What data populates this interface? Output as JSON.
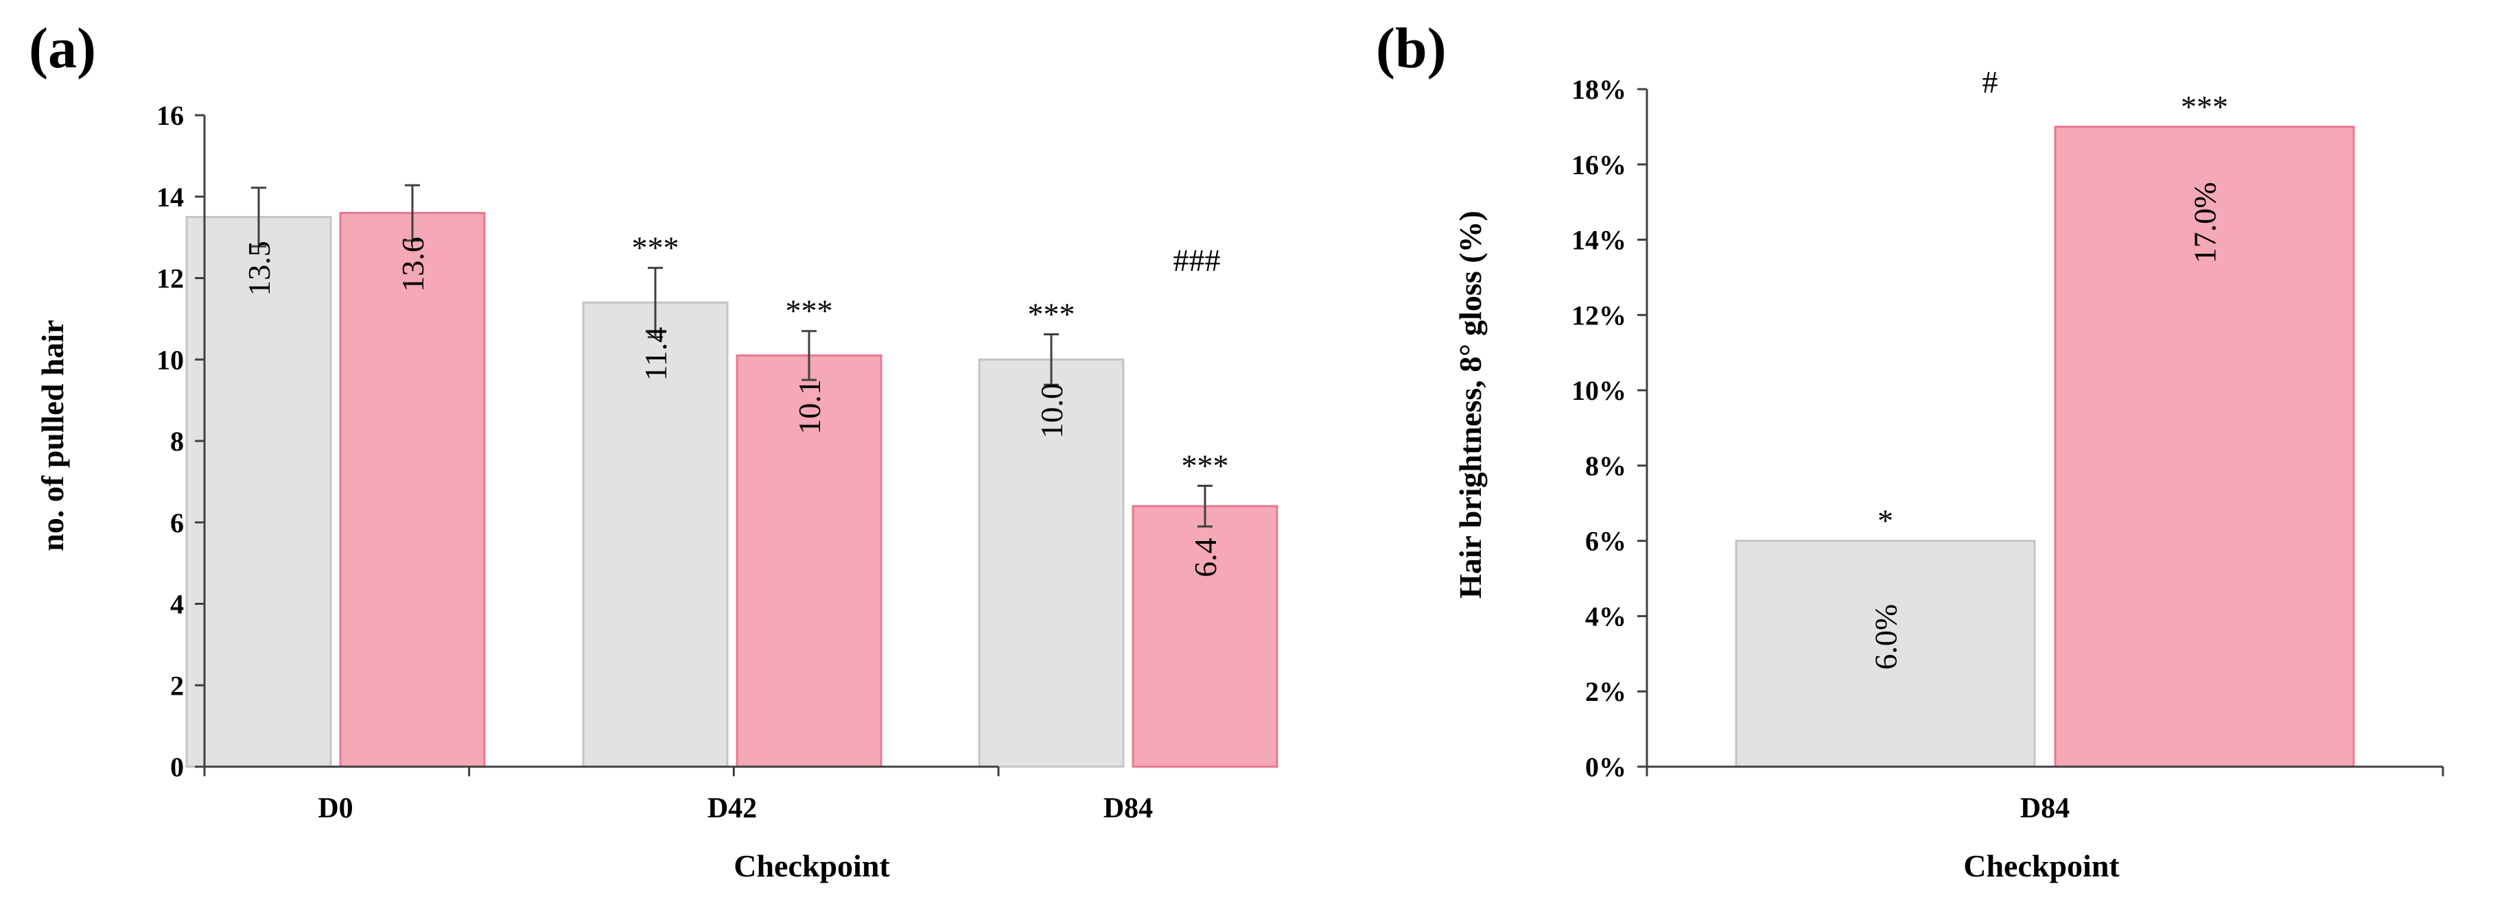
{
  "panels": [
    {
      "letter": "(a)"
    },
    {
      "letter": "(b)"
    }
  ],
  "colors": {
    "gray_fill": "#e2e2e2",
    "gray_stroke": "#c4c4c4",
    "pink_fill": "#f5a8b5",
    "pink_stroke": "#e87890",
    "axis": "#404040",
    "error_bar": "#404040"
  },
  "chart_data": [
    {
      "type": "bar",
      "title": "",
      "xlabel": "Checkpoint",
      "ylabel": "no. of pulled hair",
      "ylim": [
        0,
        16
      ],
      "yticks": [
        0,
        2,
        4,
        6,
        8,
        10,
        12,
        14,
        16
      ],
      "ytick_labels": [
        "0",
        "2",
        "4",
        "6",
        "8",
        "10",
        "12",
        "14",
        "16"
      ],
      "categories": [
        "D0",
        "D42",
        "D84"
      ],
      "grid": false,
      "legend": "none",
      "series": [
        {
          "color": "#e2e2e2",
          "values": [
            13.5,
            11.4,
            10.0
          ],
          "value_labels": [
            "13.5",
            "11.4",
            "10.0"
          ],
          "error": [
            0.72,
            0.85,
            0.62
          ],
          "annotations": [
            "",
            "***",
            "***"
          ]
        },
        {
          "color": "#f5a8b5",
          "values": [
            13.6,
            10.1,
            6.4
          ],
          "value_labels": [
            "13.6",
            "10.1",
            "6.4"
          ],
          "error": [
            0.68,
            0.6,
            0.5
          ],
          "annotations": [
            "",
            "***",
            "***"
          ]
        }
      ],
      "group_annotations": [
        "",
        "",
        "###"
      ]
    },
    {
      "type": "bar",
      "title": "",
      "xlabel": "Checkpoint",
      "ylabel": "Hair brightness, 8° gloss (%)",
      "ylim": [
        0,
        18
      ],
      "yticks": [
        0,
        2,
        4,
        6,
        8,
        10,
        12,
        14,
        16,
        18
      ],
      "ytick_labels": [
        "0%",
        "2%",
        "4%",
        "6%",
        "8%",
        "10%",
        "12%",
        "14%",
        "16%",
        "18%"
      ],
      "categories": [
        "D84"
      ],
      "grid": false,
      "legend": "none",
      "series": [
        {
          "color": "#e2e2e2",
          "values": [
            6.0
          ],
          "value_labels": [
            "6.0%"
          ],
          "annotations": [
            "*"
          ]
        },
        {
          "color": "#f5a8b5",
          "values": [
            17.0
          ],
          "value_labels": [
            "17.0%"
          ],
          "annotations": [
            "***"
          ]
        }
      ],
      "group_annotations": [
        "#"
      ]
    }
  ]
}
